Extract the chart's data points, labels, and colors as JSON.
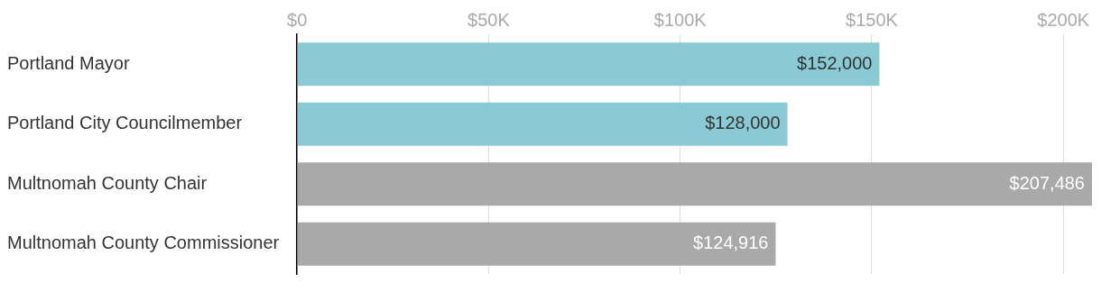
{
  "chart_data": {
    "type": "bar",
    "orientation": "horizontal",
    "categories": [
      "Portland Mayor",
      "Portland City Councilmember",
      "Multnomah County Chair",
      "Multnomah County Commissioner"
    ],
    "values": [
      152000,
      128000,
      207486,
      124916
    ],
    "colors": [
      "#89cad5",
      "#89cad5",
      "#a9a9a9",
      "#a9a9a9"
    ],
    "value_labels": [
      "$152,000",
      "$128,000",
      "$207,486",
      "$124,916"
    ],
    "xlim": [
      0,
      207486
    ],
    "xticks": [
      {
        "value": 0,
        "label": "$0"
      },
      {
        "value": 50000,
        "label": "$50K"
      },
      {
        "value": 100000,
        "label": "$100K"
      },
      {
        "value": 150000,
        "label": "$150K"
      },
      {
        "value": 200000,
        "label": "$200K"
      }
    ],
    "grid": "x",
    "legend": false
  }
}
